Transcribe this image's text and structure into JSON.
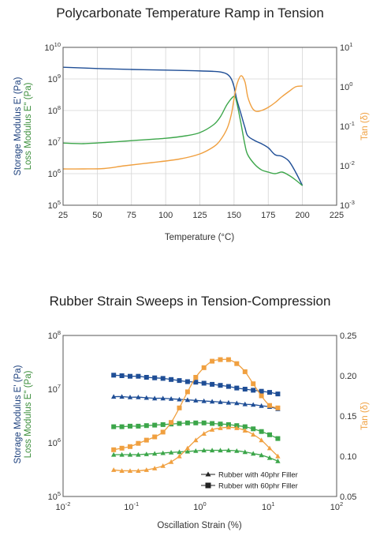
{
  "colors": {
    "storage": "#1f4e96",
    "loss": "#3ca64a",
    "tan": "#f0a040",
    "storage_dark": "#1b3f7c",
    "loss_dark": "#3c8f3c"
  },
  "chart_data": [
    {
      "type": "line",
      "title": "Polycarbonate Temperature Ramp in Tension",
      "xlabel": "Temperature (°C)",
      "ylabel_storage": "Storage Modulus E' (Pa)",
      "ylabel_loss": "Loss Modulus E\" (Pa)",
      "y2label": "Tan (δ)",
      "xlim": [
        25,
        225
      ],
      "ylim": [
        5,
        10
      ],
      "y2lim": [
        -3,
        1
      ],
      "y_scale": "log",
      "y2_scale": "log",
      "grid": true,
      "x_ticks": [
        {
          "v": 25,
          "label": "25"
        },
        {
          "v": 50,
          "label": "50"
        },
        {
          "v": 75,
          "label": "75"
        },
        {
          "v": 100,
          "label": "100"
        },
        {
          "v": 125,
          "label": "125"
        },
        {
          "v": 150,
          "label": "150"
        },
        {
          "v": 175,
          "label": "175"
        },
        {
          "v": 200,
          "label": "200"
        },
        {
          "v": 225,
          "label": "225"
        }
      ],
      "y_ticks": [
        {
          "v": 5,
          "base": "10",
          "exp": "5"
        },
        {
          "v": 6,
          "base": "10",
          "exp": "6"
        },
        {
          "v": 7,
          "base": "10",
          "exp": "7"
        },
        {
          "v": 8,
          "base": "10",
          "exp": "8"
        },
        {
          "v": 9,
          "base": "10",
          "exp": "9"
        },
        {
          "v": 10,
          "base": "10",
          "exp": "10"
        }
      ],
      "y2_ticks": [
        {
          "v": -3,
          "base": "10",
          "exp": "-3"
        },
        {
          "v": -2,
          "base": "10",
          "exp": "-2"
        },
        {
          "v": -1,
          "base": "10",
          "exp": "-1"
        },
        {
          "v": 0,
          "base": "10",
          "exp": "0"
        },
        {
          "v": 1,
          "base": "10",
          "exp": "1"
        }
      ],
      "series": [
        {
          "role": "storage",
          "axis": "left",
          "x": [
            25,
            50,
            75,
            100,
            120,
            135,
            140,
            145,
            148,
            150,
            152,
            155,
            158,
            160,
            165,
            170,
            175,
            180,
            185,
            190,
            195,
            200
          ],
          "y": [
            9.37,
            9.33,
            9.3,
            9.28,
            9.26,
            9.24,
            9.22,
            9.15,
            9.0,
            8.75,
            8.35,
            7.9,
            7.45,
            7.2,
            7.05,
            6.95,
            6.82,
            6.6,
            6.55,
            6.4,
            6.05,
            5.62
          ]
        },
        {
          "role": "loss",
          "axis": "left",
          "x": [
            25,
            40,
            60,
            80,
            100,
            115,
            125,
            135,
            140,
            145,
            150,
            152,
            155,
            158,
            160,
            165,
            170,
            175,
            180,
            185,
            190,
            195,
            200
          ],
          "y": [
            6.97,
            6.95,
            7.0,
            7.06,
            7.12,
            7.2,
            7.3,
            7.55,
            7.8,
            8.2,
            8.45,
            8.25,
            7.6,
            6.9,
            6.6,
            6.3,
            6.12,
            6.05,
            6.0,
            6.05,
            5.95,
            5.8,
            5.62
          ]
        },
        {
          "role": "tan",
          "axis": "right",
          "x": [
            25,
            40,
            55,
            70,
            90,
            110,
            125,
            135,
            140,
            145,
            148,
            150,
            152,
            155,
            158,
            160,
            163,
            166,
            170,
            175,
            180,
            185,
            190,
            195,
            200
          ],
          "y": [
            -2.08,
            -2.08,
            -2.07,
            -2.0,
            -1.92,
            -1.83,
            -1.7,
            -1.52,
            -1.35,
            -1.05,
            -0.7,
            -0.3,
            0.05,
            0.28,
            0.12,
            -0.25,
            -0.52,
            -0.62,
            -0.6,
            -0.52,
            -0.4,
            -0.25,
            -0.12,
            0.0,
            0.02
          ]
        }
      ]
    },
    {
      "type": "line",
      "title": "Rubber Strain Sweeps in Tension-Compression",
      "xlabel": "Oscillation Strain (%)",
      "ylabel_storage": "Storage Modulus E' (Pa)",
      "ylabel_loss": "Loss Modulus E\" (Pa)",
      "y2label": "Tan (δ)",
      "xlim": [
        -2,
        2
      ],
      "ylim": [
        5,
        8
      ],
      "y2lim": [
        0.05,
        0.25
      ],
      "x_scale": "log",
      "y_scale": "log",
      "y2_scale": "linear",
      "grid": false,
      "legend_position": "bottom-right",
      "x_ticks": [
        {
          "v": -2,
          "base": "10",
          "exp": "-2"
        },
        {
          "v": -1,
          "base": "10",
          "exp": "-1"
        },
        {
          "v": 0,
          "base": "10",
          "exp": "0"
        },
        {
          "v": 1,
          "base": "10",
          "exp": "1"
        },
        {
          "v": 2,
          "base": "10",
          "exp": "2"
        }
      ],
      "y_ticks": [
        {
          "v": 5,
          "base": "10",
          "exp": "5"
        },
        {
          "v": 6,
          "base": "10",
          "exp": "6"
        },
        {
          "v": 7,
          "base": "10",
          "exp": "7"
        },
        {
          "v": 8,
          "base": "10",
          "exp": "8"
        }
      ],
      "y2_ticks": [
        {
          "v": 0.05,
          "label": "0.05"
        },
        {
          "v": 0.1,
          "label": "0.10"
        },
        {
          "v": 0.15,
          "label": "0.15"
        },
        {
          "v": 0.2,
          "label": "0.20"
        },
        {
          "v": 0.25,
          "label": "0.25"
        }
      ],
      "legend": [
        {
          "marker": "triangle",
          "label": "Rubber with 40phr Filler"
        },
        {
          "marker": "square",
          "label": "Rubber with 60phr Filler"
        }
      ],
      "x": [
        -1.26,
        -1.14,
        -1.02,
        -0.9,
        -0.78,
        -0.66,
        -0.54,
        -0.42,
        -0.3,
        -0.18,
        -0.06,
        0.06,
        0.18,
        0.3,
        0.42,
        0.54,
        0.66,
        0.78,
        0.9,
        1.02,
        1.14
      ],
      "series": [
        {
          "role": "storage",
          "marker": "square",
          "axis": "left",
          "y": [
            7.26,
            7.25,
            7.24,
            7.24,
            7.22,
            7.21,
            7.2,
            7.18,
            7.16,
            7.14,
            7.13,
            7.11,
            7.09,
            7.07,
            7.05,
            7.02,
            7.0,
            6.98,
            6.96,
            6.94,
            6.91
          ]
        },
        {
          "role": "storage",
          "marker": "triangle",
          "axis": "left",
          "y": [
            6.86,
            6.86,
            6.85,
            6.85,
            6.84,
            6.83,
            6.83,
            6.82,
            6.81,
            6.8,
            6.79,
            6.78,
            6.77,
            6.76,
            6.75,
            6.74,
            6.72,
            6.71,
            6.69,
            6.67,
            6.63
          ]
        },
        {
          "role": "loss",
          "marker": "square",
          "axis": "left",
          "y": [
            6.3,
            6.3,
            6.31,
            6.31,
            6.32,
            6.33,
            6.34,
            6.35,
            6.36,
            6.37,
            6.37,
            6.37,
            6.36,
            6.35,
            6.34,
            6.32,
            6.3,
            6.26,
            6.21,
            6.15,
            6.08
          ]
        },
        {
          "role": "loss",
          "marker": "triangle",
          "axis": "left",
          "y": [
            5.78,
            5.78,
            5.78,
            5.78,
            5.79,
            5.8,
            5.81,
            5.82,
            5.83,
            5.84,
            5.85,
            5.86,
            5.86,
            5.86,
            5.86,
            5.85,
            5.83,
            5.8,
            5.77,
            5.72,
            5.66
          ]
        },
        {
          "role": "tan",
          "marker": "square",
          "axis": "right",
          "y": [
            0.108,
            0.11,
            0.112,
            0.116,
            0.12,
            0.124,
            0.13,
            0.142,
            0.16,
            0.18,
            0.198,
            0.21,
            0.218,
            0.22,
            0.22,
            0.215,
            0.205,
            0.19,
            0.175,
            0.163,
            0.16
          ]
        },
        {
          "role": "tan",
          "marker": "triangle",
          "axis": "right",
          "y": [
            0.083,
            0.082,
            0.082,
            0.082,
            0.083,
            0.085,
            0.088,
            0.093,
            0.1,
            0.11,
            0.12,
            0.128,
            0.133,
            0.135,
            0.136,
            0.135,
            0.132,
            0.127,
            0.12,
            0.11,
            0.1
          ]
        }
      ]
    }
  ]
}
